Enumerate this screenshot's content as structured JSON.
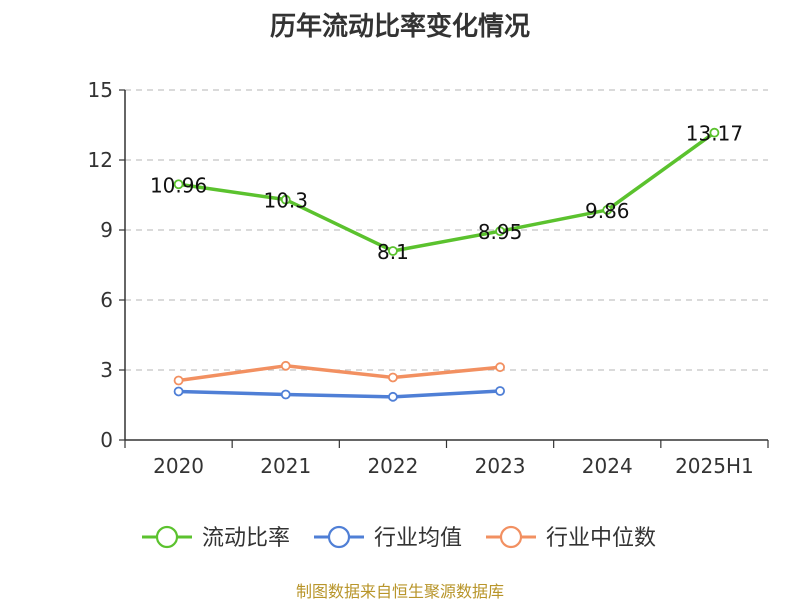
{
  "chart_data": {
    "type": "line",
    "title": "历年流动比率变化情况",
    "categories": [
      "2020",
      "2021",
      "2022",
      "2023",
      "2024",
      "2025H1"
    ],
    "ylim": [
      0,
      15
    ],
    "yticks": [
      "0",
      "3",
      "6",
      "9",
      "12",
      "15"
    ],
    "grid": true,
    "legend_position": "bottom",
    "series": [
      {
        "name": "流动比率",
        "values": [
          10.96,
          10.3,
          8.1,
          8.95,
          9.86,
          13.17
        ],
        "labels": [
          "10.96",
          "10.3",
          "8.1",
          "8.95",
          "9.86",
          "13.17"
        ],
        "color": "#5bc22e"
      },
      {
        "name": "行业均值",
        "values": [
          2.08,
          1.95,
          1.85,
          2.1,
          null,
          null
        ],
        "color": "#4f7fd6"
      },
      {
        "name": "行业中位数",
        "values": [
          2.55,
          3.18,
          2.68,
          3.12,
          null,
          null
        ],
        "color": "#f29061"
      }
    ]
  },
  "footer": "制图数据来自恒生聚源数据库"
}
